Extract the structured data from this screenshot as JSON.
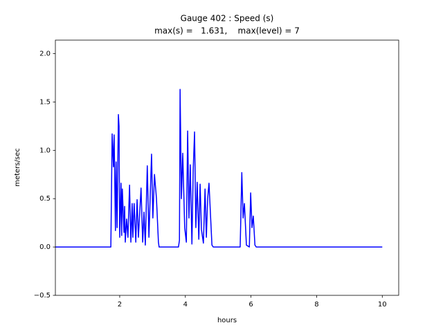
{
  "chart_data": {
    "type": "line",
    "title": "Gauge 402 : Speed (s)",
    "subtitle": "max(s) =   1.631,    max(level) = 7",
    "x_label": "hours",
    "y_label": "meters/sec",
    "xlim": [
      0.04,
      10.5
    ],
    "xticks": [
      2,
      4,
      6,
      8,
      10
    ],
    "ylim": [
      -0.5,
      2.14
    ],
    "yticks": [
      {
        "value": -0.5,
        "label": "−0.5"
      },
      {
        "value": 0,
        "label": "0.0"
      },
      0.5,
      {
        "value": 1,
        "label": "1.0"
      },
      1.5,
      {
        "value": 2,
        "label": "2.0"
      }
    ],
    "grid": false,
    "series": [
      {
        "color": "#0000ff",
        "x": [
          0.04,
          1.73,
          1.77,
          1.81,
          1.83,
          1.87,
          1.89,
          1.92,
          1.96,
          1.98,
          2.0,
          2.04,
          2.06,
          2.08,
          2.13,
          2.15,
          2.17,
          2.21,
          2.25,
          2.3,
          2.34,
          2.38,
          2.4,
          2.44,
          2.49,
          2.53,
          2.57,
          2.65,
          2.7,
          2.74,
          2.78,
          2.84,
          2.89,
          2.97,
          3.01,
          3.06,
          3.12,
          3.18,
          3.2,
          3.79,
          3.82,
          3.84,
          3.88,
          3.92,
          3.98,
          4.03,
          4.07,
          4.11,
          4.15,
          4.2,
          4.24,
          4.28,
          4.32,
          4.36,
          4.41,
          4.45,
          4.49,
          4.55,
          4.6,
          4.64,
          4.68,
          4.72,
          4.81,
          4.85,
          5.67,
          5.72,
          5.76,
          5.8,
          5.86,
          5.95,
          5.99,
          6.03,
          6.07,
          6.12,
          6.16,
          10.0
        ],
        "values": [
          0,
          0,
          1.17,
          0.83,
          1.16,
          0.17,
          0.88,
          0.2,
          1.37,
          1.25,
          0.1,
          0.66,
          0.12,
          0.6,
          0.15,
          0.42,
          0.05,
          0.29,
          0.1,
          0.64,
          0.05,
          0.45,
          0.1,
          0.45,
          0.05,
          0.49,
          0.1,
          0.61,
          0.05,
          0.36,
          0.02,
          0.84,
          0.1,
          0.96,
          0.3,
          0.75,
          0.5,
          0.05,
          0,
          0,
          0.07,
          1.63,
          0.5,
          0.97,
          0.2,
          0.05,
          1.2,
          0.3,
          0.85,
          0.03,
          0.8,
          1.19,
          0.2,
          0.67,
          0.08,
          0.65,
          0.18,
          0.04,
          0.6,
          0.1,
          0.5,
          0.66,
          0.02,
          0,
          0,
          0.77,
          0.3,
          0.45,
          0.02,
          0,
          0.56,
          0.2,
          0.32,
          0.02,
          0,
          0
        ]
      }
    ]
  }
}
